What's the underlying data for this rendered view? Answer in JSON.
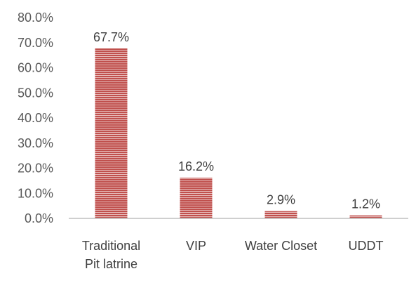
{
  "chart_data": {
    "type": "bar",
    "categories": [
      [
        "Traditional",
        "Pit latrine"
      ],
      [
        "VIP"
      ],
      [
        "Water Closet"
      ],
      [
        "UDDT"
      ]
    ],
    "values": [
      67.7,
      16.2,
      2.9,
      1.2
    ],
    "data_labels": [
      "67.7%",
      "16.2%",
      "2.9%",
      "1.2%"
    ],
    "y_ticks": [
      "0.0%",
      "10.0%",
      "20.0%",
      "30.0%",
      "40.0%",
      "50.0%",
      "60.0%",
      "70.0%",
      "80.0%"
    ],
    "ylim": [
      0,
      80
    ],
    "title": "",
    "xlabel": "",
    "ylabel": "",
    "grid": false,
    "legend": "none",
    "bar_color": "#c0504d",
    "bar_stripe_color": "#e6b9b8"
  }
}
